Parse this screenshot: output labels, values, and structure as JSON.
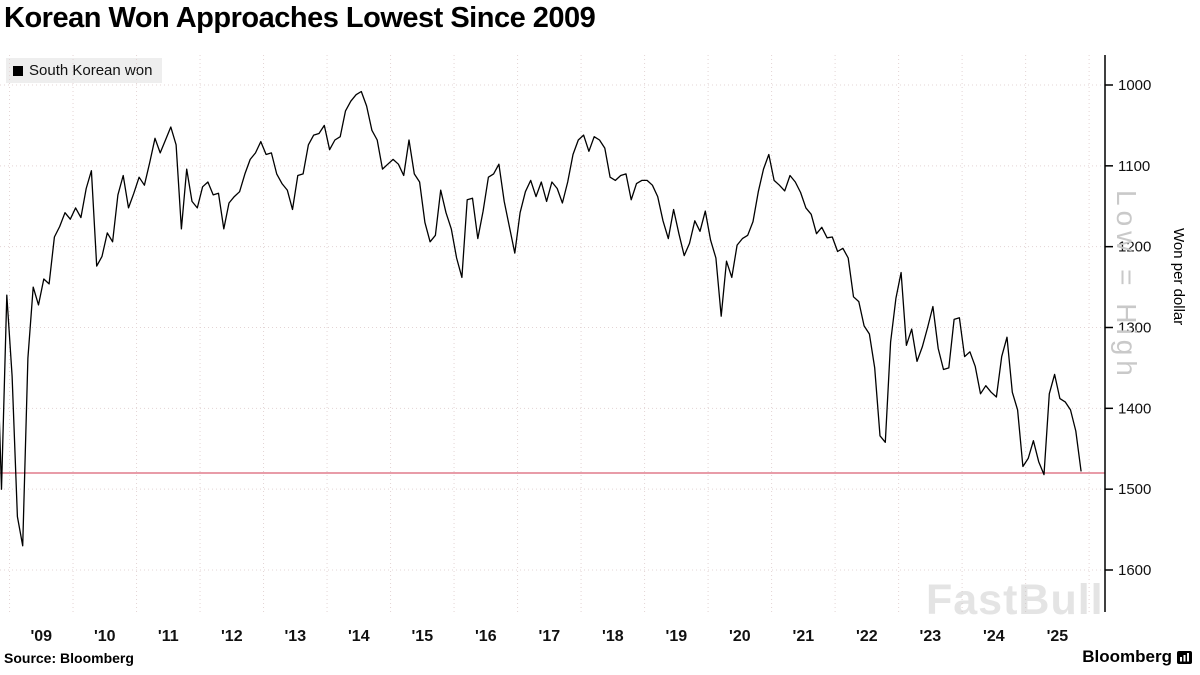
{
  "title": "Korean Won Approaches Lowest Since 2009",
  "legend": {
    "label": "South Korean won",
    "swatch_color": "#000000"
  },
  "footer": {
    "source": "Source: Bloomberg",
    "brand": "Bloomberg"
  },
  "watermarks": {
    "axis_note": "Low = High",
    "brand": "FastBull"
  },
  "chart_data": {
    "type": "line",
    "title": "Korean Won Approaches Lowest Since 2009",
    "series_name": "South Korean won",
    "ylabel": "Won per dollar",
    "y_inverted": true,
    "grid": true,
    "grid_color": "#e3d4d4",
    "line_color": "#000000",
    "ref_line": {
      "value": 1480,
      "color": "#d03a52"
    },
    "ylim": [
      1000,
      1600
    ],
    "xlim": [
      2008.85,
      2026.25
    ],
    "y_ticks": [
      1000,
      1100,
      1200,
      1300,
      1400,
      1500,
      1600
    ],
    "x_tick_labels": [
      "'09",
      "'10",
      "'11",
      "'12",
      "'13",
      "'14",
      "'15",
      "'16",
      "'17",
      "'18",
      "'19",
      "'20",
      "'21",
      "'22",
      "'23",
      "'24",
      "'25"
    ],
    "x_tick_positions": [
      2009.5,
      2010.5,
      2011.5,
      2012.5,
      2013.5,
      2014.5,
      2015.5,
      2016.5,
      2017.5,
      2018.5,
      2019.5,
      2020.5,
      2021.5,
      2022.5,
      2023.5,
      2024.5,
      2025.5
    ],
    "x_start": 2008.79,
    "x_step": 0.083333,
    "values": [
      1290,
      1500,
      1260,
      1360,
      1534,
      1570,
      1338,
      1250,
      1272,
      1240,
      1246,
      1188,
      1175,
      1158,
      1166,
      1152,
      1164,
      1128,
      1106,
      1224,
      1212,
      1183,
      1194,
      1136,
      1112,
      1152,
      1134,
      1114,
      1124,
      1096,
      1066,
      1084,
      1068,
      1052,
      1074,
      1178,
      1104,
      1144,
      1152,
      1126,
      1120,
      1136,
      1134,
      1178,
      1146,
      1138,
      1132,
      1110,
      1092,
      1084,
      1070,
      1086,
      1084,
      1110,
      1122,
      1130,
      1154,
      1112,
      1110,
      1074,
      1062,
      1060,
      1050,
      1080,
      1068,
      1064,
      1032,
      1020,
      1012,
      1008,
      1026,
      1056,
      1068,
      1104,
      1098,
      1092,
      1098,
      1112,
      1068,
      1110,
      1120,
      1170,
      1194,
      1186,
      1130,
      1158,
      1178,
      1214,
      1238,
      1142,
      1140,
      1190,
      1156,
      1114,
      1110,
      1098,
      1144,
      1176,
      1208,
      1158,
      1132,
      1118,
      1138,
      1120,
      1144,
      1120,
      1128,
      1146,
      1120,
      1086,
      1068,
      1062,
      1082,
      1064,
      1068,
      1078,
      1114,
      1118,
      1112,
      1110,
      1142,
      1122,
      1118,
      1118,
      1124,
      1138,
      1168,
      1190,
      1154,
      1184,
      1211,
      1196,
      1168,
      1181,
      1156,
      1192,
      1214,
      1286,
      1218,
      1238,
      1198,
      1190,
      1186,
      1169,
      1132,
      1104,
      1086,
      1118,
      1124,
      1131,
      1112,
      1120,
      1133,
      1152,
      1160,
      1184,
      1176,
      1189,
      1188,
      1206,
      1202,
      1214,
      1262,
      1268,
      1298,
      1308,
      1350,
      1434,
      1442,
      1318,
      1264,
      1232,
      1322,
      1302,
      1342,
      1324,
      1300,
      1274,
      1326,
      1352,
      1350,
      1290,
      1288,
      1336,
      1330,
      1348,
      1382,
      1372,
      1380,
      1386,
      1336,
      1312,
      1380,
      1402,
      1472,
      1462,
      1440,
      1466,
      1482,
      1382,
      1358,
      1388,
      1392,
      1402,
      1428,
      1478
    ]
  }
}
